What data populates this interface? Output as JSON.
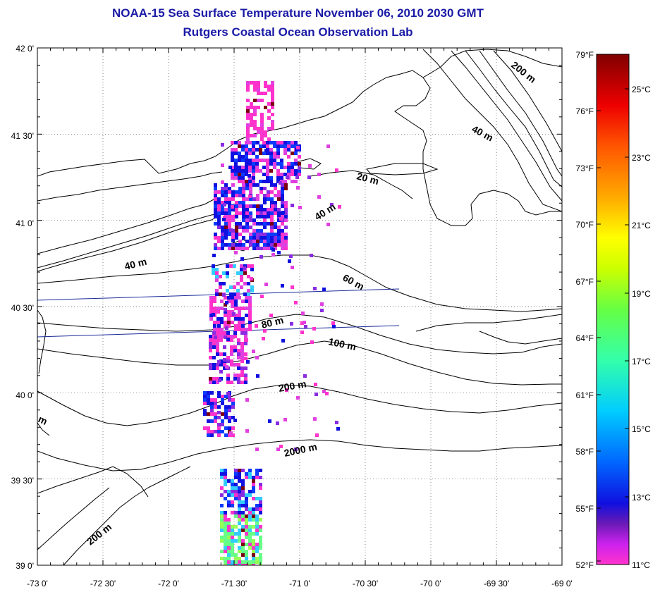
{
  "title": "NOAA-15 Sea Surface Temperature November 06, 2010 2030 GMT",
  "subtitle": "Rutgers Coastal Ocean Observation Lab",
  "map": {
    "lon_range": [
      -73.0,
      -69.0
    ],
    "lat_range": [
      39.0,
      42.0
    ],
    "grid": true,
    "x_tick_labels": [
      "-73 0'",
      "-72 30'",
      "-72 0'",
      "-71 30'",
      "-71 0'",
      "-70 30'",
      "-70 0'",
      "-69 30'",
      "-69 0'"
    ],
    "y_tick_labels": [
      "42 0'",
      "41 30'",
      "41 0'",
      "40 30'",
      "40 0'",
      "39 30'",
      "39 0'"
    ]
  },
  "contour_labels": [
    "200 m",
    "40 m",
    "20 m",
    "40 m",
    "40 m",
    "60 m",
    "80 m",
    "100 m",
    "200 m",
    "2000 m",
    "m",
    "200 m"
  ],
  "colorbar": {
    "fahrenheit_labels": [
      "79°F",
      "76°F",
      "73°F",
      "70°F",
      "67°F",
      "64°F",
      "61°F",
      "58°F",
      "55°F",
      "52°F"
    ],
    "celsius_labels": [
      "25°C",
      "23°C",
      "21°C",
      "19°C",
      "17°C",
      "15°C",
      "13°C",
      "11°C"
    ],
    "range_c": [
      11,
      26.1
    ],
    "colors": [
      "#ff33cc",
      "#a020f0",
      "#1010e0",
      "#0066ff",
      "#00ccff",
      "#33ffaa",
      "#66ff44",
      "#ccff00",
      "#ffff00",
      "#ffaa00",
      "#ff5500",
      "#ee0000",
      "#800000"
    ]
  },
  "colors": {
    "title": "#1a1aa6",
    "coastline": "#000000",
    "transect": "#1a2a9a"
  }
}
